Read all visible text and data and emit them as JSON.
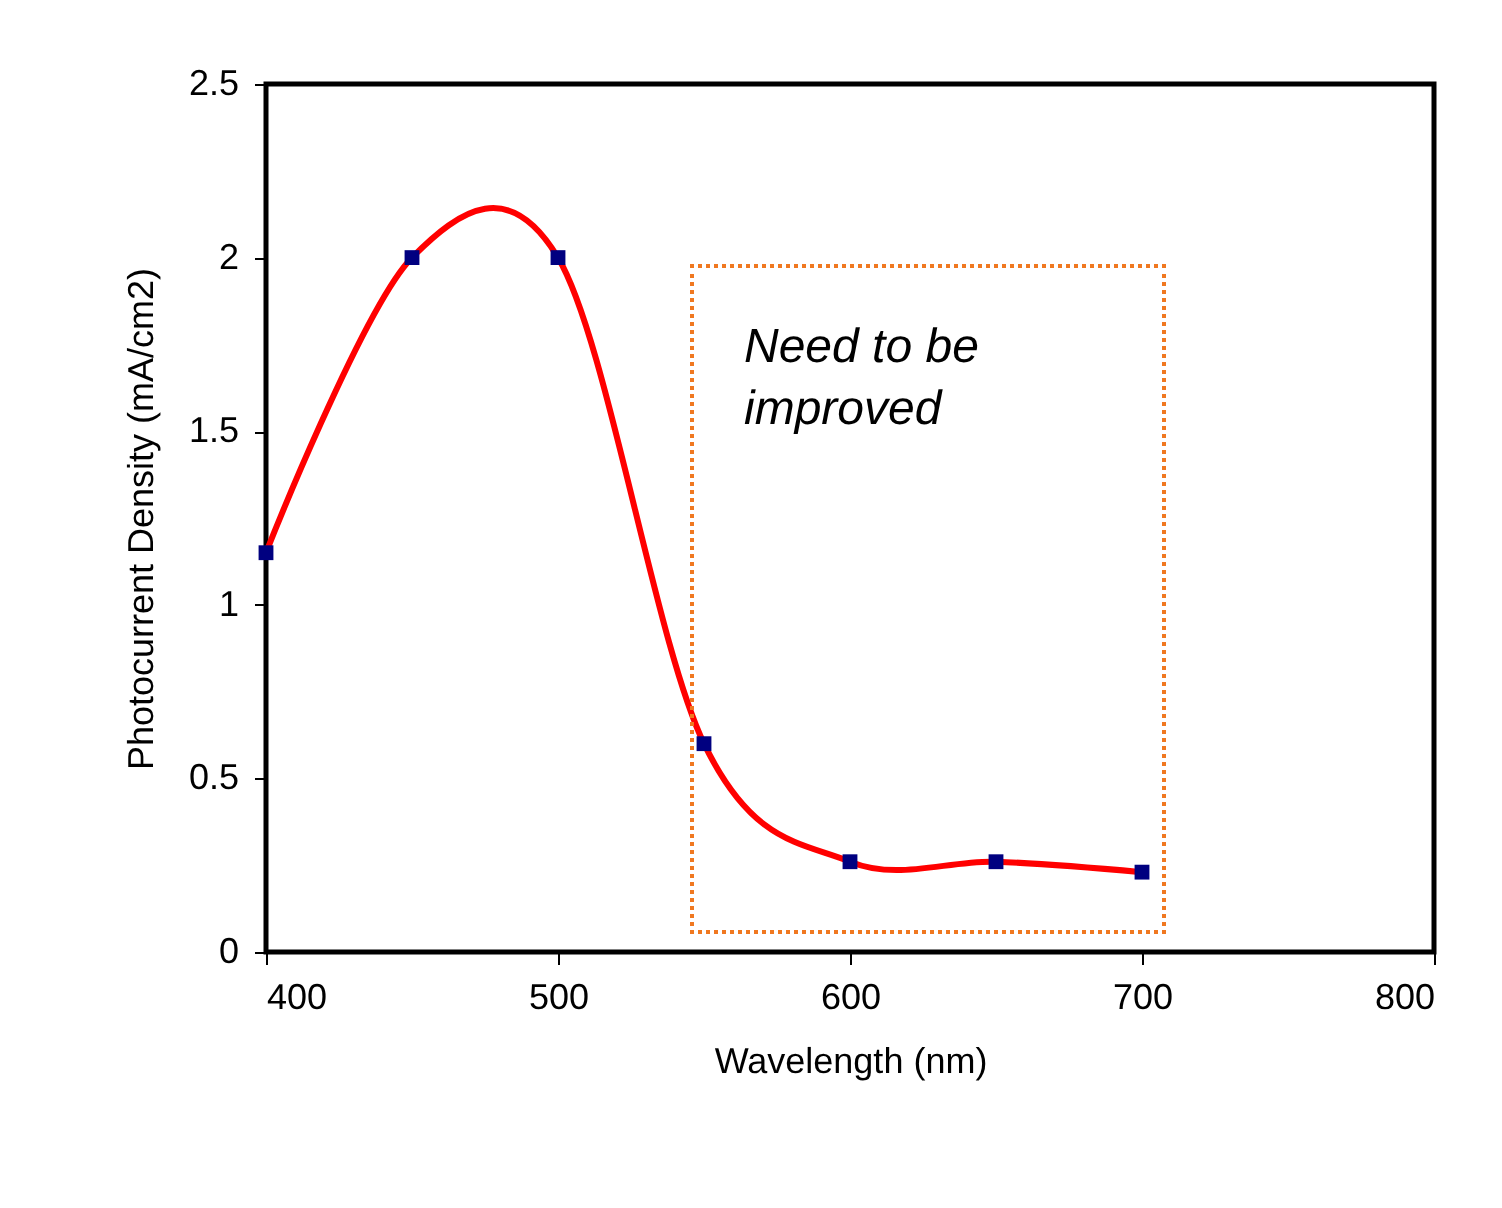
{
  "chart_data": {
    "type": "line",
    "xlabel": "Wavelength (nm)",
    "ylabel": "Photocurrent Density (mA/cm2)",
    "x": [
      400,
      450,
      500,
      550,
      600,
      650,
      700
    ],
    "series": [
      {
        "color": "#ff0000",
        "values": [
          1.15,
          2.0,
          2.0,
          0.6,
          0.26,
          0.26,
          0.23
        ]
      }
    ],
    "marker": "square",
    "xlim": [
      400,
      800
    ],
    "xticks": [
      400,
      500,
      600,
      700,
      800
    ],
    "ylim": [
      0,
      2.5
    ],
    "yticks": [
      0,
      0.5,
      1,
      1.5,
      2,
      2.5
    ],
    "grid": false,
    "annotations": [
      "Need to be improved"
    ]
  }
}
